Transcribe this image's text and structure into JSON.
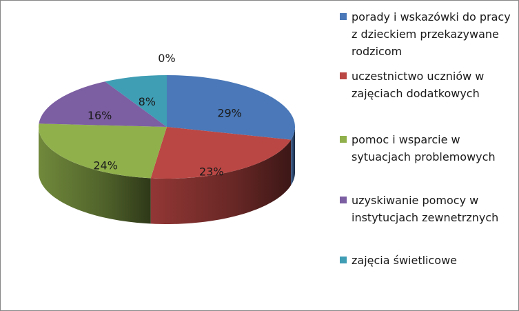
{
  "chart_data": {
    "type": "pie",
    "title": "",
    "categories": [
      "porady i wskazówki do pracy z dzieckiem przekazywane rodzicom",
      "uczestnictwo uczniów w zajęciach dodatkowych",
      "pomoc i wsparcie w sytuacjach problemowych",
      "uzyskiwanie pomocy w instytucjach zewnetrznych",
      "zajęcia świetlicowe"
    ],
    "values": [
      29,
      23,
      24,
      16,
      8
    ],
    "value_labels": [
      "29%",
      "23%",
      "24%",
      "16%",
      "8%"
    ],
    "extra_label": "0%",
    "colors": [
      "#4a78b8",
      "#bb4744",
      "#90b04c",
      "#7c5ea2",
      "#3f9db4"
    ],
    "style": "3d",
    "legend_position": "right"
  }
}
